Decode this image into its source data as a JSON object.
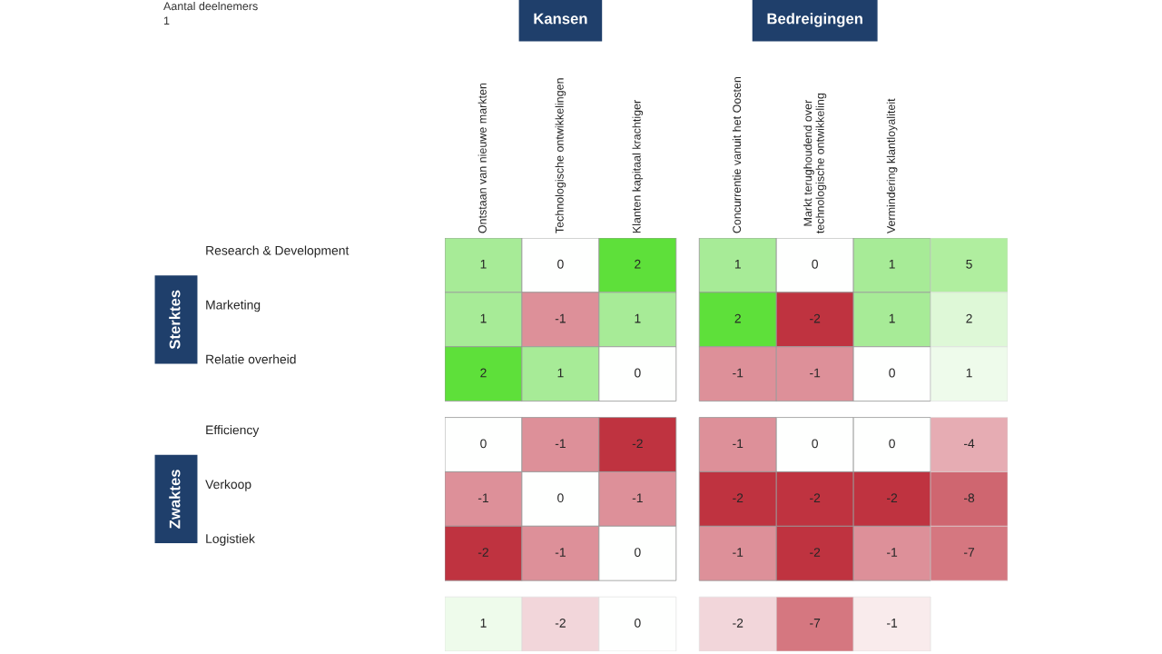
{
  "chart_data": {
    "type": "heatmap",
    "categories": [
      "Ontstaan van nieuwe markten",
      "Technologische ontwikkelingen",
      "Klanten kapitaal krachtiger",
      "Concurrentie vanuit het Oosten",
      "Markt terughoudend over\ntechnologische ontwikkeling",
      "Vermindering klantloyaliteit",
      null
    ],
    "y_categories": [
      "Research & Development",
      "Marketing",
      "Relatie overheid",
      "Efficiency",
      "Verkoop",
      "Logistiek",
      null
    ],
    "cells": [
      [
        1,
        0,
        2,
        1,
        0,
        1,
        5
      ],
      [
        1,
        -1,
        1,
        2,
        -2,
        1,
        2
      ],
      [
        2,
        1,
        0,
        -1,
        -1,
        0,
        1
      ],
      [
        0,
        -1,
        -2,
        -1,
        0,
        0,
        -4
      ],
      [
        -1,
        0,
        -1,
        -2,
        -2,
        -2,
        -8
      ],
      [
        -2,
        -1,
        0,
        -1,
        -2,
        -1,
        -7
      ],
      [
        1,
        -2,
        0,
        -2,
        -7,
        -1,
        null
      ]
    ],
    "data_labels": true,
    "annotations": [
      "Aantal deelnemers",
      "1",
      "Kansen",
      "Bedreigingen",
      "Sterktes",
      "Zwaktes"
    ]
  }
}
